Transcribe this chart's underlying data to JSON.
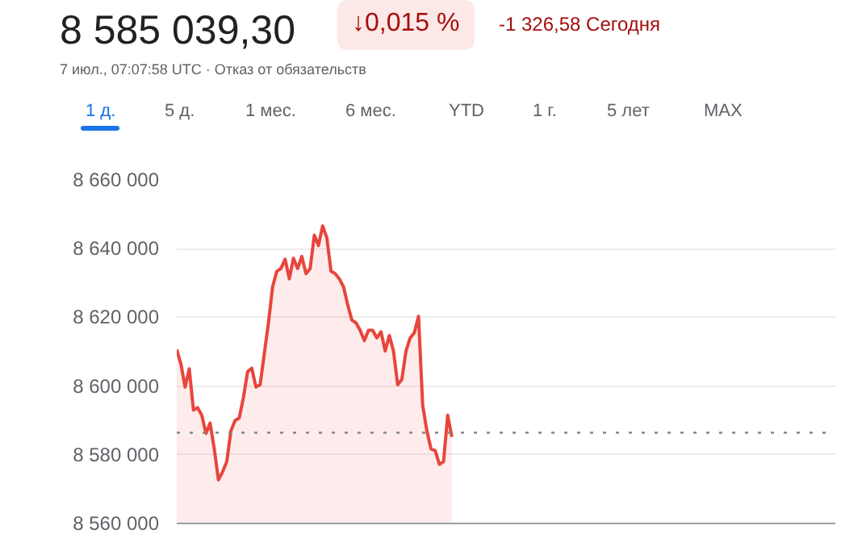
{
  "chart_data": {
    "type": "area",
    "title": "8 585 039,30",
    "subtitle": "7 июл., 07:07:58 UTC · Отказ от обязательств",
    "annotations": [
      "↓0,015 %",
      "-1 326,58 Сегодня",
      "1 д.",
      "5 д.",
      "1 мес.",
      "6 мес.",
      "YTD",
      "1 г.",
      "5 лет",
      "MAX"
    ],
    "categories": [
      null,
      null,
      null,
      null,
      null,
      null,
      null,
      null,
      null,
      null,
      null,
      null,
      null,
      null,
      null,
      null,
      null,
      null,
      null,
      null,
      null,
      null,
      null,
      null,
      null,
      null,
      null,
      null,
      null,
      null,
      null,
      null,
      null,
      null,
      null,
      null,
      null,
      null,
      null,
      null,
      null,
      null,
      null,
      null,
      null,
      null,
      null,
      null,
      null,
      null,
      null,
      null,
      null,
      null,
      null,
      null,
      null,
      null,
      null,
      null,
      null,
      null,
      null,
      null,
      null,
      null,
      null,
      null,
      null,
      null,
      null,
      null,
      null,
      null,
      null,
      null,
      null,
      null,
      null,
      null,
      null,
      null,
      null,
      null,
      null,
      null,
      null,
      null,
      null,
      null,
      null,
      null,
      null,
      null,
      null,
      null,
      null,
      null,
      null,
      null,
      null,
      null,
      null,
      null,
      null,
      null,
      null,
      null,
      null,
      null,
      null,
      null,
      null,
      null,
      null,
      null,
      null,
      null,
      null,
      null,
      null,
      null,
      null,
      null,
      null,
      null,
      null,
      null,
      null,
      null,
      null,
      null,
      null,
      null,
      null,
      null,
      null,
      null,
      null,
      null,
      null,
      null,
      null,
      null,
      null,
      null,
      null,
      null,
      null,
      null,
      null,
      null,
      null,
      null,
      null,
      null,
      null,
      null,
      null
    ],
    "series": [
      {
        "color": "#e8453c",
        "values": [
          8610600,
          8606400,
          8599700,
          8605000,
          8593000,
          8593700,
          8591500,
          8586200,
          8589200,
          8581700,
          8572700,
          8575000,
          8578000,
          8587000,
          8590000,
          8590700,
          8596700,
          8604200,
          8605200,
          8599700,
          8600400,
          8609400,
          8618400,
          8628900,
          8633400,
          8634200,
          8636900,
          8631200,
          8637200,
          8634200,
          8637700,
          8632700,
          8634200,
          8643900,
          8640900,
          8646600,
          8643200,
          8633400,
          8632700,
          8631200,
          8628900,
          8623700,
          8619200,
          8618400,
          8616200,
          8613200,
          8616200,
          8616200,
          8614000,
          8615800,
          8610200,
          8614700,
          8610200,
          8600400,
          8601900,
          8610200,
          8614000,
          8615500,
          8620300,
          8594400,
          8587000,
          8581700,
          8581200,
          8577200,
          8578000,
          8591500,
          8585200,
          null,
          null,
          null,
          null,
          null,
          null,
          null,
          null,
          null,
          null,
          null,
          null,
          null,
          null,
          null,
          null,
          null,
          null,
          null,
          null,
          null,
          null,
          null,
          null,
          null,
          null,
          null,
          null,
          null,
          null,
          null,
          null,
          null,
          null,
          null,
          null,
          null,
          null,
          null,
          null,
          null,
          null,
          null,
          null,
          null,
          null,
          null,
          null,
          null,
          null,
          null,
          null,
          null,
          null,
          null,
          null,
          null,
          null,
          null,
          null,
          null,
          null,
          null,
          null,
          null,
          null,
          null,
          null,
          null,
          null,
          null,
          null,
          null,
          null,
          null,
          null,
          null,
          null,
          null,
          null,
          null,
          null,
          null,
          null,
          null,
          null,
          null,
          null,
          null,
          null,
          null,
          null
        ]
      }
    ],
    "ylim": [
      8560000,
      8660000
    ],
    "yticks": [
      {
        "value": 8560000,
        "label": "8 560 000"
      },
      {
        "value": 8580000,
        "label": "8 580 000"
      },
      {
        "value": 8600000,
        "label": "8 600 000"
      },
      {
        "value": 8620000,
        "label": "8 620 000"
      },
      {
        "value": 8640000,
        "label": "8 640 000"
      },
      {
        "value": 8660000,
        "label": "8 660 000"
      }
    ],
    "tick_labels": "y",
    "grid": "y",
    "ref_lines": [
      {
        "axis": "y",
        "value": 8586400,
        "color": "#80868b",
        "line_style": "dotted"
      }
    ]
  }
}
